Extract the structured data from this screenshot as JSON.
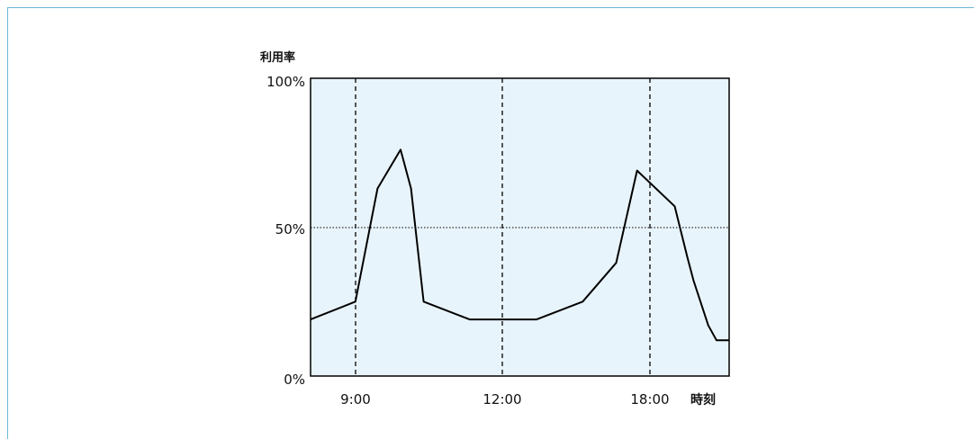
{
  "chart_data": {
    "type": "line",
    "ylabel": "利用率",
    "xlabel": "時刻",
    "y_ticks": [
      "100%",
      "50%",
      "0%"
    ],
    "x_ticks": [
      "9:00",
      "12:00",
      "18:00"
    ],
    "ylim": [
      0,
      100
    ],
    "grid": "dashed vertical lines at 9:00, 12:00, 18:00; dotted horizontal line at 50%",
    "colors": {
      "plot_bg": "#e8f4fb",
      "line": "#000000",
      "frame_border": "#6cb6d9"
    },
    "series": [
      {
        "x": [
          0,
          0.107,
          0.16,
          0.215,
          0.24,
          0.27,
          0.38,
          0.54,
          0.65,
          0.73,
          0.78,
          0.87,
          0.9,
          0.915,
          0.95,
          0.97,
          1.0
        ],
        "values": [
          19,
          25,
          63,
          76,
          63,
          25,
          19,
          19,
          25,
          38,
          69,
          57,
          40,
          32,
          17,
          12,
          12
        ]
      }
    ]
  }
}
